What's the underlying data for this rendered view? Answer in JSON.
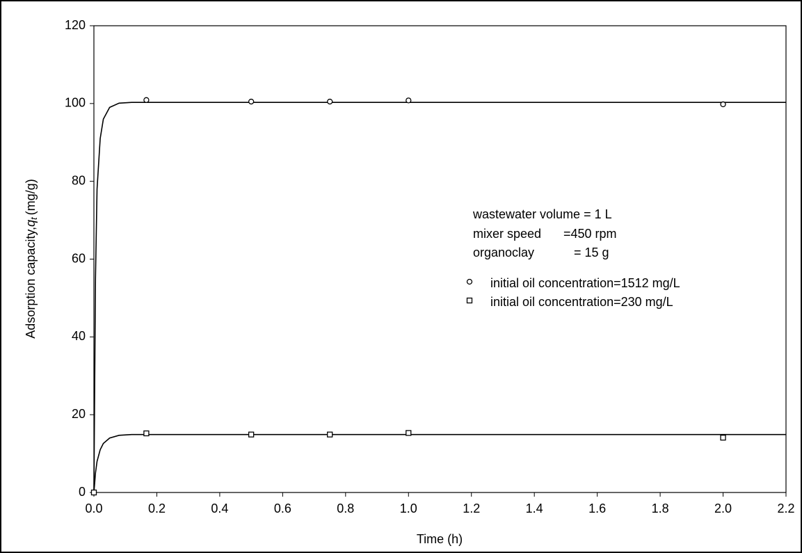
{
  "chart_data": {
    "type": "scatter",
    "x_label": "Time (h)",
    "y_label": {
      "prefix": "Adsorption capacity,",
      "symbol": "q",
      "subscript": "t",
      "unit": "(mg/g)"
    },
    "xlim": [
      0,
      2.2
    ],
    "xticks": [
      {
        "value": 0,
        "label": "0.0"
      },
      0.2,
      0.4,
      0.6,
      0.8,
      {
        "value": 1,
        "label": "1.0"
      },
      1.2,
      1.4,
      1.6,
      1.8,
      {
        "value": 2,
        "label": "2.0"
      },
      2.2
    ],
    "ylim": [
      0,
      120
    ],
    "yticks": [
      0,
      20,
      40,
      60,
      80,
      100,
      120
    ],
    "series": [
      {
        "name": "initial oil concentration=1512 mg/L",
        "color": "#000000",
        "marker": "circle",
        "x": [
          0,
          0.1667,
          0.5,
          0.75,
          1.0,
          2.0
        ],
        "values": [
          0,
          100.9,
          100.5,
          100.5,
          100.8,
          99.8
        ]
      },
      {
        "name": "initial oil concentration=230 mg/L",
        "color": "#000000",
        "marker": "square",
        "x": [
          0,
          0.1667,
          0.5,
          0.75,
          1.0,
          2.0
        ],
        "values": [
          0,
          15.2,
          14.9,
          14.9,
          15.3,
          14.1
        ]
      }
    ],
    "fit_lines": [
      {
        "color": "#000000",
        "x": [
          0,
          0.005,
          0.01,
          0.02,
          0.03,
          0.05,
          0.08,
          0.12,
          0.2,
          2.2
        ],
        "values": [
          0,
          55,
          78,
          91,
          96,
          99,
          100.1,
          100.3,
          100.3,
          100.3
        ]
      },
      {
        "color": "#000000",
        "x": [
          0,
          0.005,
          0.01,
          0.02,
          0.03,
          0.05,
          0.08,
          0.12,
          0.2,
          2.2
        ],
        "values": [
          0,
          5,
          8,
          11,
          12.6,
          14.0,
          14.7,
          14.9,
          14.9,
          14.9
        ]
      }
    ],
    "annotations": [
      "wastewater volume = 1 L",
      "mixer speed",
      "=450 rpm",
      "organoclay",
      "= 15 g"
    ],
    "legend": "right"
  }
}
